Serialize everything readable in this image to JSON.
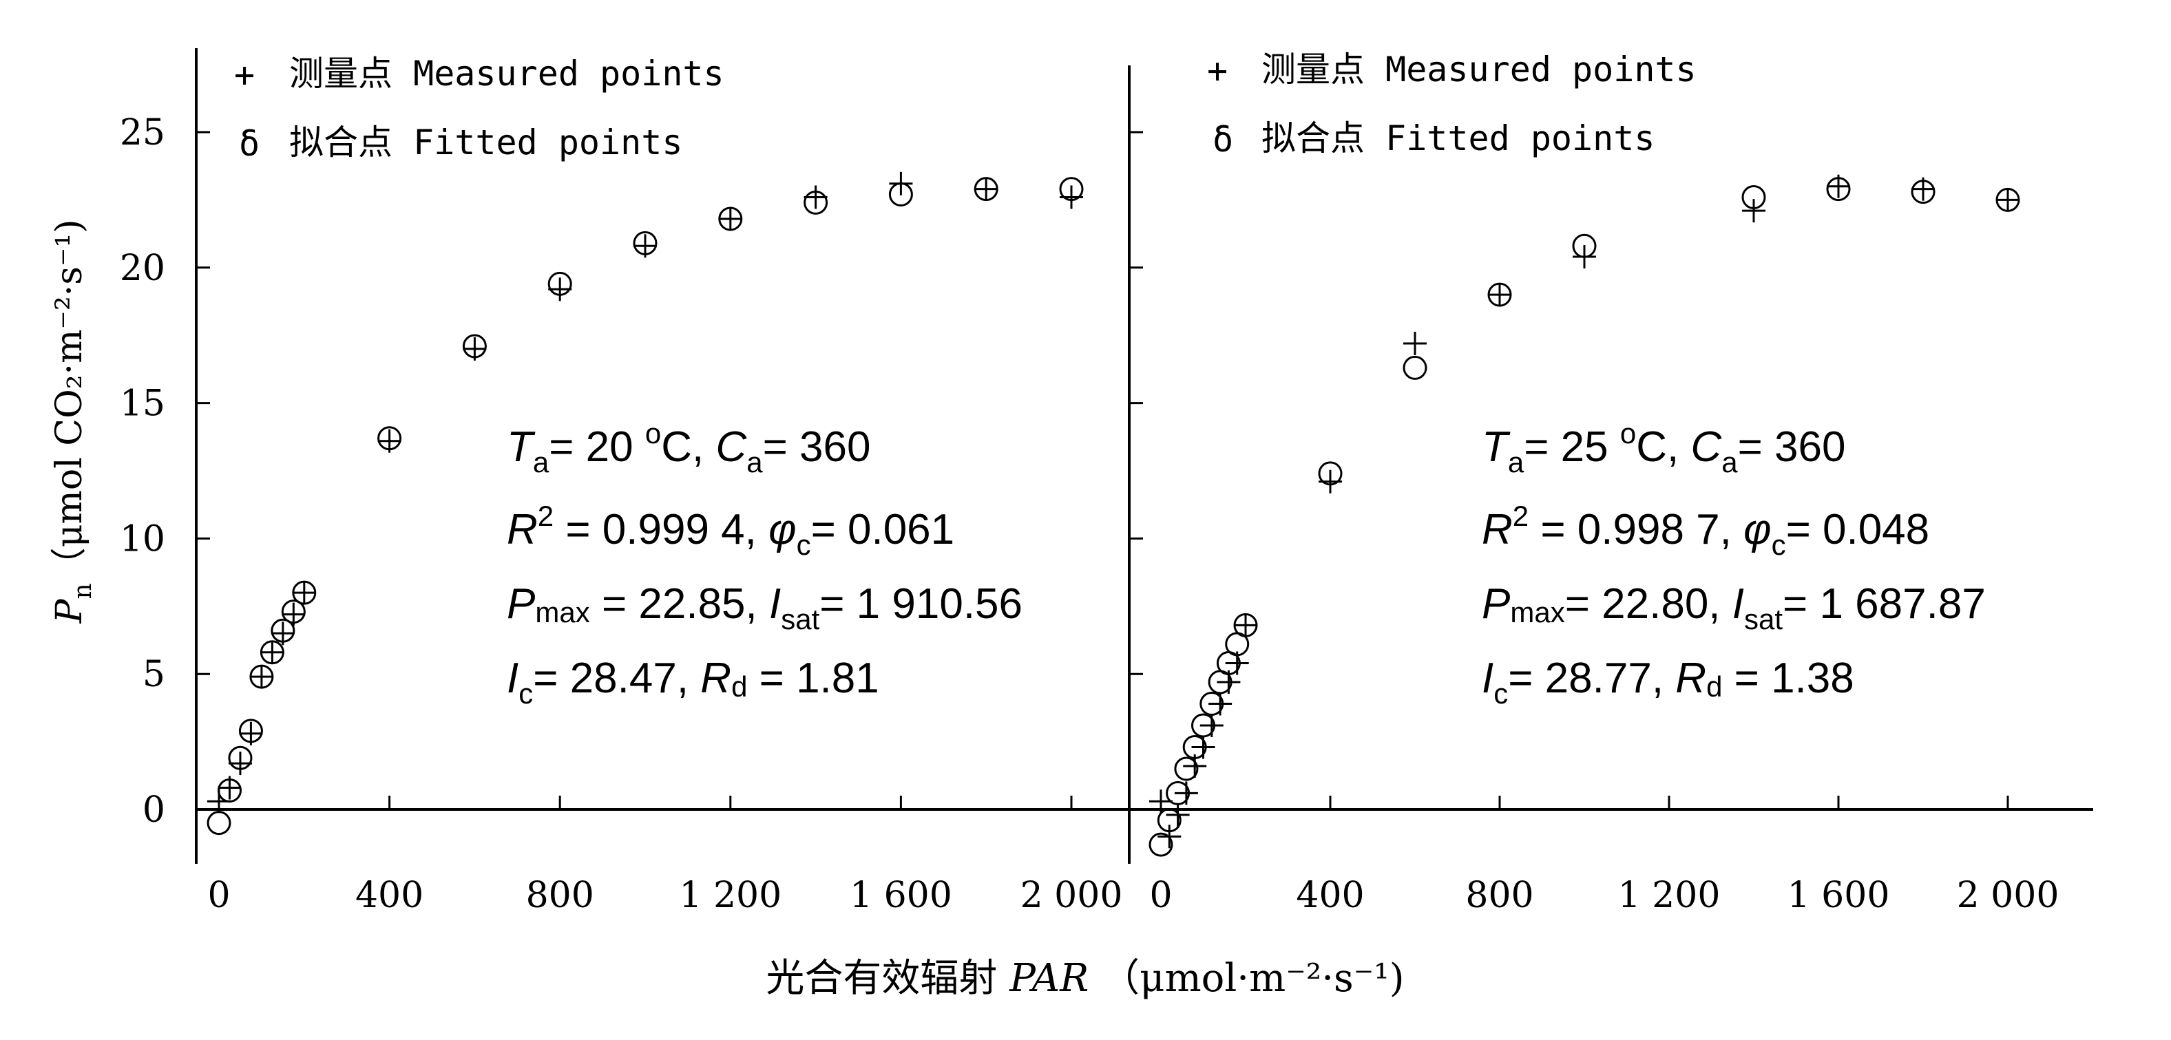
{
  "chart_data": {
    "type": "scatter",
    "xlabel_prefix": "光合有效辐射",
    "xlabel_var": "PAR",
    "xlabel_units": "（μmol·m⁻²·s⁻¹)",
    "ylabel_var": "P",
    "ylabel_var_sub": "n",
    "ylabel_units": "（μmol CO₂·m⁻²·s⁻¹)",
    "xlim": [
      0,
      2000
    ],
    "ylim": [
      -2,
      28
    ],
    "x_ticks": [
      0,
      400,
      800,
      1200,
      1600,
      2000
    ],
    "x_tick_labels": [
      "0",
      "400",
      "800",
      "1 200",
      "1 600",
      "2 000"
    ],
    "y_ticks": [
      0,
      5,
      10,
      15,
      20,
      25
    ],
    "y_tick_labels": [
      "0",
      "5",
      "10",
      "15",
      "20",
      "25"
    ],
    "legend": {
      "measured_symbol": "+",
      "measured_label": "测量点 Measured points",
      "fitted_symbol": "δ",
      "fitted_label": "拟合点 Fitted points"
    },
    "panels": [
      {
        "measured": {
          "x": [
            0,
            25,
            50,
            75,
            100,
            125,
            150,
            175,
            200,
            400,
            600,
            800,
            1000,
            1200,
            1400,
            1600,
            1800,
            2000
          ],
          "y": [
            0.3,
            0.8,
            1.7,
            2.8,
            4.9,
            5.8,
            6.5,
            7.2,
            8.0,
            13.6,
            17.0,
            19.2,
            20.8,
            21.8,
            22.6,
            23.1,
            22.9,
            22.6
          ]
        },
        "fitted": {
          "x": [
            0,
            25,
            50,
            75,
            100,
            125,
            150,
            175,
            200,
            400,
            600,
            800,
            1000,
            1200,
            1400,
            1600,
            1800,
            2000
          ],
          "y": [
            -0.5,
            0.7,
            1.9,
            2.9,
            4.9,
            5.8,
            6.6,
            7.3,
            8.0,
            13.7,
            17.1,
            19.4,
            20.9,
            21.8,
            22.4,
            22.7,
            22.9,
            22.9
          ]
        },
        "annotation": {
          "line1": {
            "t_var": "T",
            "t_sub": "a",
            "t_text": "= 20 ",
            "deg": "o",
            "t_unit": "C,  ",
            "c_var": "C",
            "c_sub": "a",
            "c_text": "= 360"
          },
          "line2": {
            "r_var": "R",
            "r_sup": "2",
            "r_text": " = 0.999 4, ",
            "phi_var": "φ",
            "phi_sub": "c",
            "phi_text": "= 0.061"
          },
          "line3": {
            "p_var": "P",
            "p_sub": "max",
            "p_text": " = 22.85, ",
            "i_var": "I",
            "i_sub": "sat",
            "i_text": "= 1 910.56"
          },
          "line4": {
            "ic_var": "I",
            "ic_sub": "c",
            "ic_text": "= 28.47, ",
            "rd_var": "R",
            "rd_sub": "d",
            "rd_text": " = 1.81"
          }
        }
      },
      {
        "measured": {
          "x": [
            0,
            20,
            40,
            60,
            80,
            100,
            120,
            140,
            160,
            180,
            200,
            400,
            600,
            800,
            1000,
            1400,
            1600,
            1800,
            2000
          ],
          "y": [
            0.3,
            -1.0,
            -0.2,
            0.6,
            1.6,
            2.3,
            3.1,
            3.9,
            4.7,
            5.4,
            6.8,
            12.1,
            17.2,
            19.0,
            20.4,
            22.1,
            23.0,
            22.9,
            22.5
          ]
        },
        "fitted": {
          "x": [
            0,
            20,
            40,
            60,
            80,
            100,
            120,
            140,
            160,
            180,
            200,
            400,
            600,
            800,
            1000,
            1400,
            1600,
            1800,
            2000
          ],
          "y": [
            -1.3,
            -0.4,
            0.6,
            1.5,
            2.3,
            3.1,
            3.9,
            4.7,
            5.4,
            6.1,
            6.8,
            12.4,
            16.3,
            19.0,
            20.8,
            22.6,
            22.9,
            22.8,
            22.5
          ]
        },
        "annotation": {
          "line1": {
            "t_var": "T",
            "t_sub": "a",
            "t_text": "= 25 ",
            "deg": "o",
            "t_unit": "C, ",
            "c_var": "C",
            "c_sub": "a",
            "c_text": "= 360"
          },
          "line2": {
            "r_var": "R",
            "r_sup": "2",
            "r_text": " = 0.998 7, ",
            "phi_var": "φ",
            "phi_sub": "c",
            "phi_text": "= 0.048"
          },
          "line3": {
            "p_var": "P",
            "p_sub": "max",
            "p_text": "= 22.80, ",
            "i_var": "I",
            "i_sub": "sat",
            "i_text": "= 1 687.87"
          },
          "line4": {
            "ic_var": "I",
            "ic_sub": "c",
            "ic_text": "= 28.77, ",
            "rd_var": "R",
            "rd_sub": "d",
            "rd_text": " = 1.38"
          }
        }
      }
    ]
  }
}
